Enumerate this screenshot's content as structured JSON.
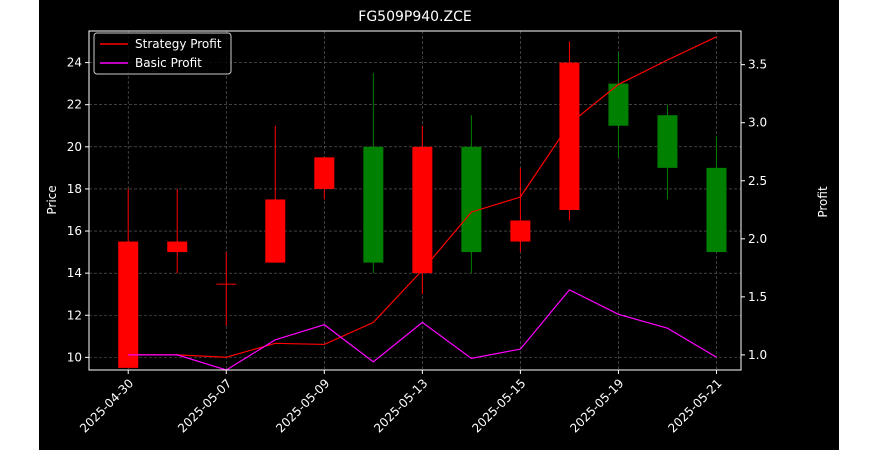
{
  "chart_data": {
    "type": "candlestick",
    "title": "FG509P940.ZCE",
    "xlabel": "",
    "ylabel": "Price",
    "y2label": "Profit",
    "x_tick_labels": [
      "2025-04-30",
      "2025-05-07",
      "2025-05-09",
      "2025-05-13",
      "2025-05-15",
      "2025-05-19",
      "2025-05-21"
    ],
    "ylim": [
      9.4,
      25.5
    ],
    "yticks": [
      10,
      12,
      14,
      16,
      18,
      20,
      22,
      24
    ],
    "y2lim": [
      0.87,
      3.79
    ],
    "y2ticks": [
      1.0,
      1.5,
      2.0,
      2.5,
      3.0,
      3.5
    ],
    "grid": true,
    "legend_position": "top-left",
    "candles": [
      {
        "open": 15.5,
        "high": 18.0,
        "low": 9.5,
        "close": 9.5,
        "color": "#ff0000"
      },
      {
        "open": 15.5,
        "high": 18.0,
        "low": 14.0,
        "close": 15.0,
        "color": "#ff0000"
      },
      {
        "open": 13.5,
        "high": 15.0,
        "low": 11.5,
        "close": 13.5,
        "color": "#ff0000"
      },
      {
        "open": 14.5,
        "high": 21.0,
        "low": 14.5,
        "close": 17.5,
        "color": "#ff0000"
      },
      {
        "open": 18.0,
        "high": 19.5,
        "low": 17.5,
        "close": 19.5,
        "color": "#ff0000"
      },
      {
        "open": 20.0,
        "high": 23.5,
        "low": 14.0,
        "close": 14.5,
        "color": "#008000"
      },
      {
        "open": 14.0,
        "high": 21.0,
        "low": 13.0,
        "close": 20.0,
        "color": "#ff0000"
      },
      {
        "open": 20.0,
        "high": 21.5,
        "low": 14.0,
        "close": 15.0,
        "color": "#008000"
      },
      {
        "open": 15.5,
        "high": 19.0,
        "low": 15.0,
        "close": 16.5,
        "color": "#ff0000"
      },
      {
        "open": 17.0,
        "high": 25.0,
        "low": 16.5,
        "close": 24.0,
        "color": "#ff0000"
      },
      {
        "open": 23.0,
        "high": 24.5,
        "low": 19.5,
        "close": 21.0,
        "color": "#008000"
      },
      {
        "open": 21.5,
        "high": 22.0,
        "low": 17.5,
        "close": 19.0,
        "color": "#008000"
      },
      {
        "open": 19.0,
        "high": 20.5,
        "low": 15.0,
        "close": 15.0,
        "color": "#008000"
      }
    ],
    "series": [
      {
        "name": "Strategy Profit",
        "color": "#ff0000",
        "values": [
          1.0,
          1.0,
          0.98,
          1.1,
          1.09,
          1.28,
          1.73,
          2.23,
          2.36,
          2.99,
          3.33,
          3.54,
          3.74
        ]
      },
      {
        "name": "Basic Profit",
        "color": "#ff00ff",
        "values": [
          1.0,
          1.0,
          0.87,
          1.13,
          1.26,
          0.94,
          1.28,
          0.97,
          1.05,
          1.56,
          1.35,
          1.23,
          0.98
        ]
      }
    ]
  }
}
